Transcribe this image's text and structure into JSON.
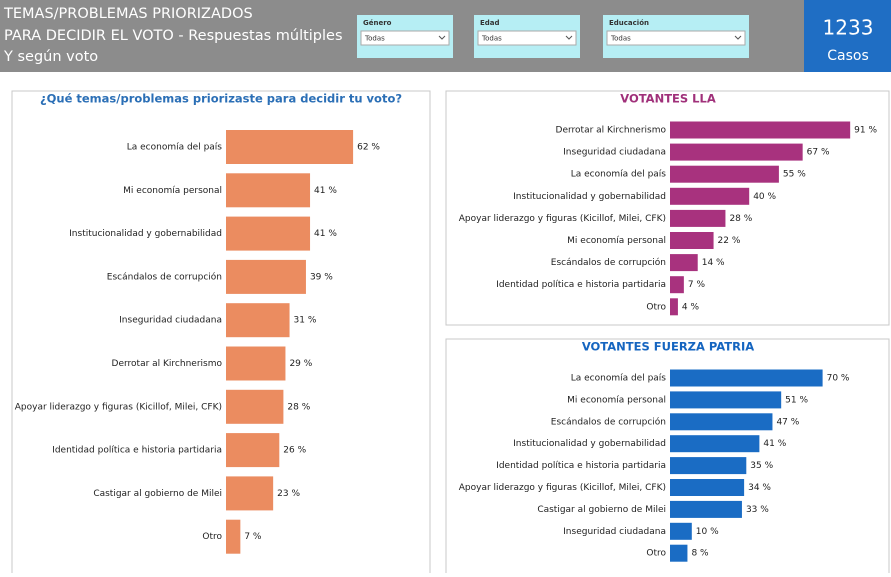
{
  "header": {
    "title_lines": [
      "TEMAS/PROBLEMAS PRIORIZADOS",
      "PARA DECIDIR EL VOTO - Respuestas múltiples",
      "Y según voto"
    ],
    "filters": [
      {
        "label": "Género",
        "value": "Todas"
      },
      {
        "label": "Edad",
        "value": "Todas"
      },
      {
        "label": "Educación",
        "value": "Todas"
      }
    ],
    "card": {
      "value": 1233,
      "label": "Casos"
    }
  },
  "chart_data": [
    {
      "type": "bar",
      "orientation": "horizontal",
      "title": "¿Qué temas/problemas priorizaste para decidir tu voto?",
      "color": "#eb8c60",
      "categories": [
        "La economía del país",
        "Mi economía personal",
        "Institucionalidad y gobernabilidad",
        "Escándalos de corrupción",
        "Inseguridad ciudadana",
        "Derrotar al Kirchnerismo",
        "Apoyar liderazgo y figuras (Kicillof, Milei, CFK)",
        "Identidad política e historia partidaria",
        "Castigar al gobierno de Milei",
        "Otro"
      ],
      "values": [
        62,
        41,
        41,
        39,
        31,
        29,
        28,
        26,
        23,
        7
      ],
      "value_labels": [
        "62 %",
        "41 %",
        "41 %",
        "39 %",
        "31 %",
        "29 %",
        "28 %",
        "26 %",
        "23 %",
        "7 %"
      ]
    },
    {
      "type": "bar",
      "orientation": "horizontal",
      "title": "VOTANTES LLA",
      "color": "#a8327e",
      "categories": [
        "Derrotar al Kirchnerismo",
        "Inseguridad ciudadana",
        "La economía del país",
        "Institucionalidad y gobernabilidad",
        "Apoyar liderazgo y figuras (Kicillof, Milei, CFK)",
        "Mi economía personal",
        "Escándalos de corrupción",
        "Identidad política e historia partidaria",
        "Otro"
      ],
      "values": [
        91,
        67,
        55,
        40,
        28,
        22,
        14,
        7,
        4
      ],
      "value_labels": [
        "91 %",
        "67 %",
        "55 %",
        "40 %",
        "28 %",
        "22 %",
        "14 %",
        "7 %",
        "4 %"
      ]
    },
    {
      "type": "bar",
      "orientation": "horizontal",
      "title": "VOTANTES FUERZA PATRIA",
      "color": "#1a6cc4",
      "categories": [
        "La economía del país",
        "Mi economía personal",
        "Escándalos de corrupción",
        "Institucionalidad y gobernabilidad",
        "Identidad política e historia partidaria",
        "Apoyar liderazgo y figuras (Kicillof, Milei, CFK)",
        "Castigar al gobierno de Milei",
        "Inseguridad ciudadana",
        "Otro"
      ],
      "values": [
        70,
        51,
        47,
        41,
        35,
        34,
        33,
        10,
        8
      ],
      "value_labels": [
        "70 %",
        "51 %",
        "47 %",
        "41 %",
        "35 %",
        "34 %",
        "33 %",
        "10 %",
        "8 %"
      ]
    }
  ]
}
